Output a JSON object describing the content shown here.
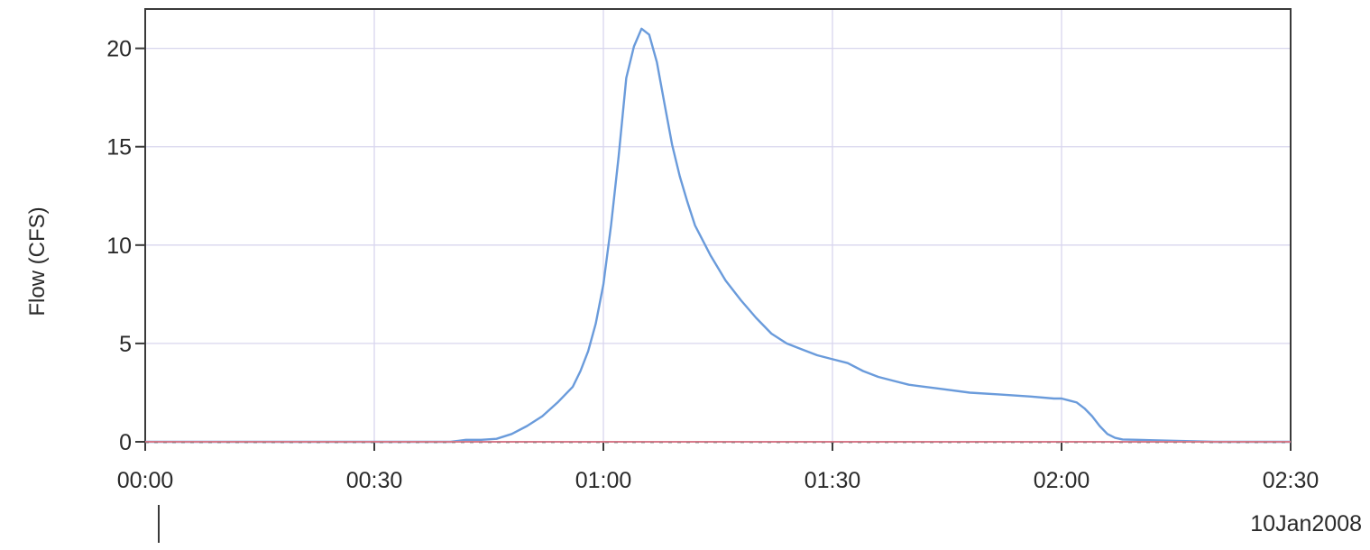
{
  "chart_data": {
    "type": "line",
    "title": "",
    "xlabel": "",
    "ylabel": "Flow (CFS)",
    "date_label": "10Jan2008",
    "x_unit": "minutes",
    "xlim": [
      0,
      150
    ],
    "ylim": [
      0,
      22
    ],
    "x_ticks": [
      {
        "value": 0,
        "label": "00:00"
      },
      {
        "value": 30,
        "label": "00:30"
      },
      {
        "value": 60,
        "label": "01:00"
      },
      {
        "value": 90,
        "label": "01:30"
      },
      {
        "value": 120,
        "label": "02:00"
      },
      {
        "value": 150,
        "label": "02:30"
      }
    ],
    "y_ticks": [
      {
        "value": 0,
        "label": "0"
      },
      {
        "value": 5,
        "label": "5"
      },
      {
        "value": 10,
        "label": "10"
      },
      {
        "value": 15,
        "label": "15"
      },
      {
        "value": 20,
        "label": "20"
      }
    ],
    "grid": true,
    "series": [
      {
        "color": "#6a9bdb",
        "x": [
          0,
          40,
          42,
          44,
          46,
          48,
          50,
          52,
          54,
          56,
          57,
          58,
          59,
          60,
          61,
          62,
          63,
          64,
          65,
          66,
          67,
          68,
          69,
          70,
          71,
          72,
          74,
          76,
          78,
          80,
          82,
          84,
          86,
          88,
          90,
          92,
          94,
          96,
          98,
          100,
          104,
          108,
          112,
          116,
          119,
          120,
          121,
          122,
          123,
          124,
          125,
          126,
          127,
          128,
          130,
          135,
          140,
          150
        ],
        "y": [
          0,
          0,
          0.1,
          0.1,
          0.15,
          0.4,
          0.8,
          1.3,
          2.0,
          2.8,
          3.6,
          4.6,
          6.0,
          8.0,
          11.0,
          14.5,
          18.5,
          20.1,
          21.0,
          20.7,
          19.3,
          17.2,
          15.1,
          13.5,
          12.2,
          11.0,
          9.5,
          8.2,
          7.2,
          6.3,
          5.5,
          5.0,
          4.7,
          4.4,
          4.2,
          4.0,
          3.6,
          3.3,
          3.1,
          2.9,
          2.7,
          2.5,
          2.4,
          2.3,
          2.2,
          2.2,
          2.1,
          2.0,
          1.7,
          1.3,
          0.8,
          0.4,
          0.2,
          0.12,
          0.1,
          0.05,
          0,
          0
        ]
      },
      {
        "color": "#d77a8a",
        "x": [
          0,
          150
        ],
        "y": [
          0,
          0
        ]
      }
    ]
  }
}
